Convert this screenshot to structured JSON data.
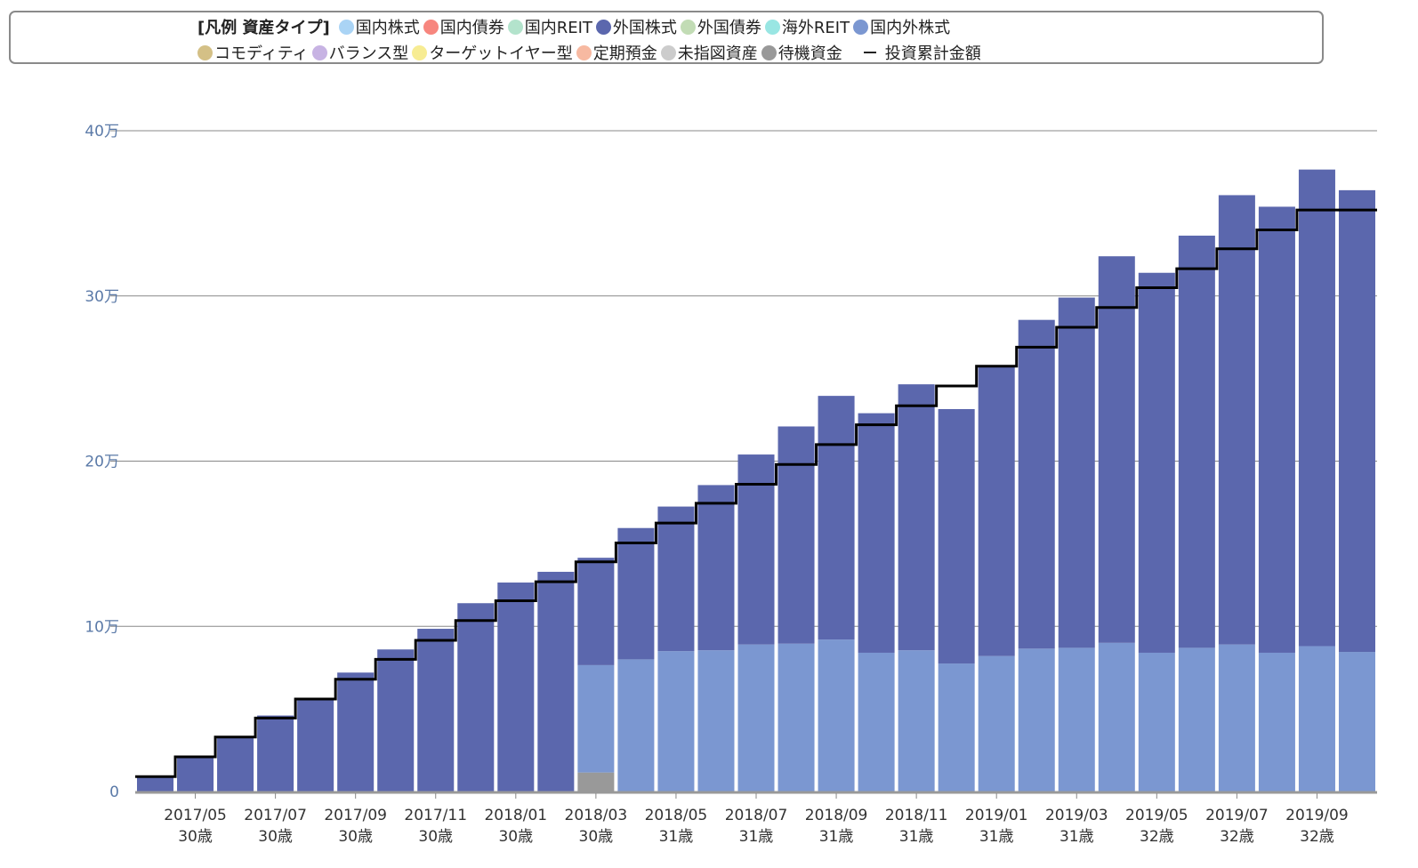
{
  "legend": {
    "title": "[凡例 資産タイプ]",
    "row1": [
      {
        "label": "国内株式",
        "color": "#aad4f5"
      },
      {
        "label": "国内債券",
        "color": "#f7867e"
      },
      {
        "label": "国内REIT",
        "color": "#b3e3cc"
      },
      {
        "label": "外国株式",
        "color": "#5b67ad"
      },
      {
        "label": "外国債券",
        "color": "#c2dcb5"
      },
      {
        "label": "海外REIT",
        "color": "#99e6e3"
      },
      {
        "label": "国内外株式",
        "color": "#7b97d1"
      }
    ],
    "row2": [
      {
        "label": "コモディティ",
        "color": "#d4c086"
      },
      {
        "label": "バランス型",
        "color": "#c7b3e3"
      },
      {
        "label": "ターゲットイヤー型",
        "color": "#f7ec93"
      },
      {
        "label": "定期預金",
        "color": "#f7b9a1"
      },
      {
        "label": "未指図資産",
        "color": "#cccccc"
      },
      {
        "label": "待機資金",
        "color": "#999999"
      }
    ],
    "line_label": "投資累計金額"
  },
  "chart_data": {
    "type": "bar",
    "stacked": true,
    "ylim": [
      0,
      400000
    ],
    "y_ticks": [
      {
        "value": 0,
        "label": "0"
      },
      {
        "value": 100000,
        "label": "10万"
      },
      {
        "value": 200000,
        "label": "20万"
      },
      {
        "value": 300000,
        "label": "30万"
      },
      {
        "value": 400000,
        "label": "40万"
      }
    ],
    "grid": true,
    "legend_position": "top",
    "categories": [
      "2017/04",
      "2017/05",
      "2017/06",
      "2017/07",
      "2017/08",
      "2017/09",
      "2017/10",
      "2017/11",
      "2017/12",
      "2018/01",
      "2018/02",
      "2018/03",
      "2018/04",
      "2018/05",
      "2018/06",
      "2018/07",
      "2018/08",
      "2018/09",
      "2018/10",
      "2018/11",
      "2018/12",
      "2019/01",
      "2019/02",
      "2019/03",
      "2019/04",
      "2019/05",
      "2019/06",
      "2019/07",
      "2019/08",
      "2019/09",
      "2019/10"
    ],
    "x_tick_labels": [
      {
        "index": 1,
        "month": "2017/05",
        "age": "30歳"
      },
      {
        "index": 3,
        "month": "2017/07",
        "age": "30歳"
      },
      {
        "index": 5,
        "month": "2017/09",
        "age": "30歳"
      },
      {
        "index": 7,
        "month": "2017/11",
        "age": "30歳"
      },
      {
        "index": 9,
        "month": "2018/01",
        "age": "30歳"
      },
      {
        "index": 11,
        "month": "2018/03",
        "age": "30歳"
      },
      {
        "index": 13,
        "month": "2018/05",
        "age": "31歳"
      },
      {
        "index": 15,
        "month": "2018/07",
        "age": "31歳"
      },
      {
        "index": 17,
        "month": "2018/09",
        "age": "31歳"
      },
      {
        "index": 19,
        "month": "2018/11",
        "age": "31歳"
      },
      {
        "index": 21,
        "month": "2019/01",
        "age": "31歳"
      },
      {
        "index": 23,
        "month": "2019/03",
        "age": "31歳"
      },
      {
        "index": 25,
        "month": "2019/05",
        "age": "32歳"
      },
      {
        "index": 27,
        "month": "2019/07",
        "age": "32歳"
      },
      {
        "index": 29,
        "month": "2019/09",
        "age": "32歳"
      }
    ],
    "series": [
      {
        "name": "待機資金",
        "color": "#999999",
        "values": [
          0,
          0,
          0,
          0,
          0,
          0,
          0,
          0,
          0,
          0,
          0,
          11500,
          0,
          0,
          0,
          0,
          0,
          0,
          0,
          0,
          0,
          0,
          0,
          0,
          0,
          0,
          0,
          0,
          0,
          0,
          0
        ]
      },
      {
        "name": "国内外株式",
        "color": "#7b97d1",
        "values": [
          0,
          0,
          0,
          0,
          0,
          0,
          0,
          0,
          0,
          0,
          0,
          65000,
          80000,
          85000,
          85500,
          89000,
          89500,
          92000,
          84000,
          85500,
          77500,
          82000,
          86500,
          87000,
          90000,
          84000,
          87000,
          89000,
          84000,
          88000,
          84500
        ]
      },
      {
        "name": "外国株式",
        "color": "#5b67ad",
        "values": [
          8500,
          21000,
          33000,
          46000,
          56000,
          72000,
          86000,
          98500,
          114000,
          126500,
          133000,
          65000,
          79500,
          87500,
          100000,
          115000,
          131500,
          147500,
          145000,
          161000,
          154000,
          175000,
          199000,
          212000,
          234000,
          230000,
          249500,
          272000,
          270000,
          288500,
          279500
        ]
      }
    ],
    "line": {
      "name": "投資累計金額",
      "color": "#000000",
      "values": [
        9000,
        21000,
        33000,
        44500,
        56000,
        68000,
        80000,
        91500,
        103500,
        115500,
        127000,
        139000,
        150500,
        162500,
        174500,
        186000,
        198000,
        210000,
        222000,
        233500,
        245500,
        257500,
        269000,
        281000,
        293000,
        305000,
        316500,
        328500,
        340000,
        352000,
        352000
      ]
    }
  }
}
